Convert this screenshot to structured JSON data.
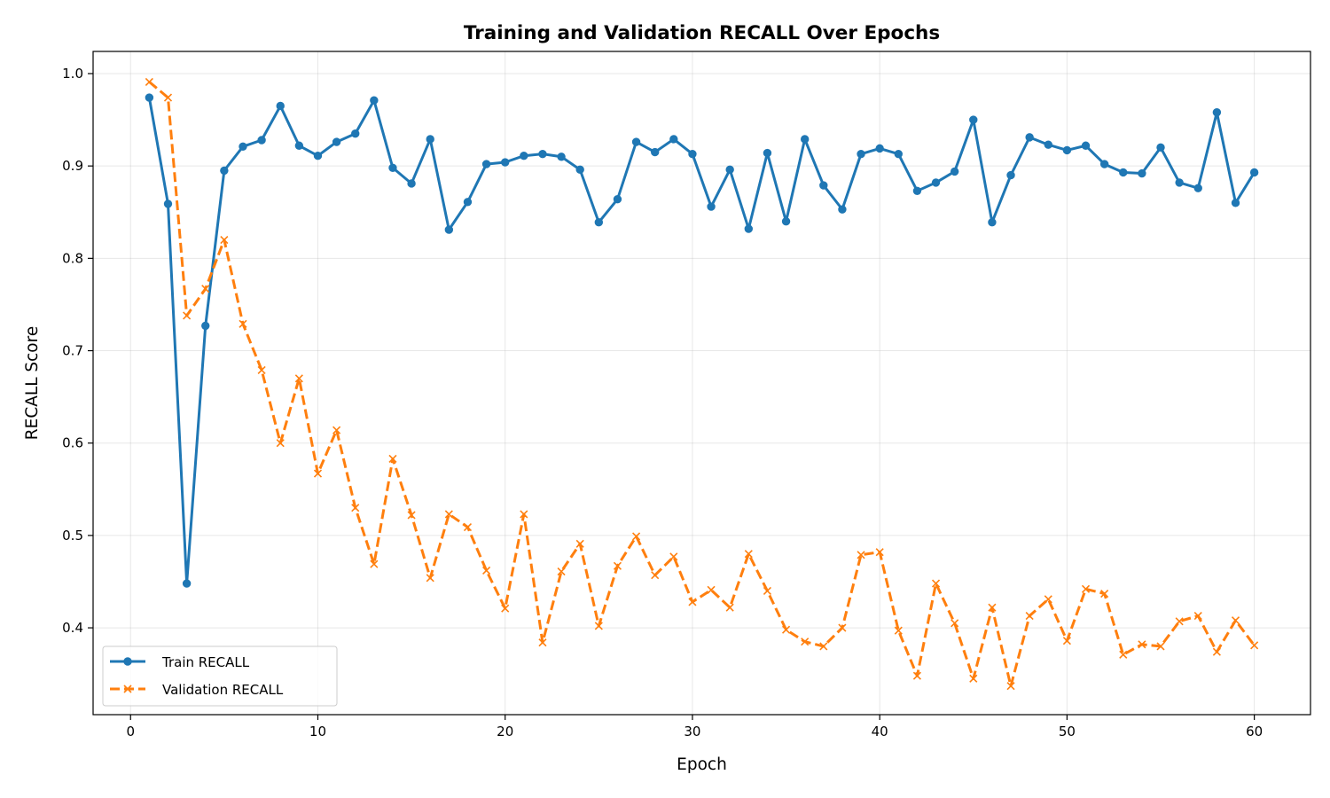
{
  "chart_data": {
    "type": "line",
    "title": "Training and Validation RECALL Over Epochs",
    "xlabel": "Epoch",
    "ylabel": "RECALL Score",
    "xlim": [
      -2,
      63
    ],
    "ylim": [
      0.306,
      1.024
    ],
    "xticks": [
      0,
      10,
      20,
      30,
      40,
      50,
      60
    ],
    "yticks": [
      0.4,
      0.5,
      0.6,
      0.7,
      0.8,
      0.9,
      1.0
    ],
    "grid": true,
    "legend_position": "bottom-left",
    "x": [
      1,
      2,
      3,
      4,
      5,
      6,
      7,
      8,
      9,
      10,
      11,
      12,
      13,
      14,
      15,
      16,
      17,
      18,
      19,
      20,
      21,
      22,
      23,
      24,
      25,
      26,
      27,
      28,
      29,
      30,
      31,
      32,
      33,
      34,
      35,
      36,
      37,
      38,
      39,
      40,
      41,
      42,
      43,
      44,
      45,
      46,
      47,
      48,
      49,
      50,
      51,
      52,
      53,
      54,
      55,
      56,
      57,
      58,
      59,
      60
    ],
    "series": [
      {
        "name": "Train RECALL",
        "color": "#1f77b4",
        "line_style": "solid",
        "marker": "circle",
        "values": [
          0.974,
          0.859,
          0.448,
          0.727,
          0.895,
          0.921,
          0.928,
          0.965,
          0.922,
          0.911,
          0.926,
          0.935,
          0.971,
          0.898,
          0.881,
          0.929,
          0.831,
          0.861,
          0.902,
          0.904,
          0.911,
          0.913,
          0.91,
          0.896,
          0.839,
          0.864,
          0.926,
          0.915,
          0.929,
          0.913,
          0.856,
          0.896,
          0.832,
          0.914,
          0.84,
          0.929,
          0.879,
          0.853,
          0.913,
          0.919,
          0.913,
          0.873,
          0.882,
          0.894,
          0.95,
          0.839,
          0.89,
          0.931,
          0.923,
          0.917,
          0.922,
          0.902,
          0.893,
          0.892,
          0.92,
          0.882,
          0.876,
          0.958,
          0.86,
          0.893
        ]
      },
      {
        "name": "Validation RECALL",
        "color": "#ff7f0e",
        "line_style": "dashed",
        "marker": "x",
        "values": [
          0.991,
          0.974,
          0.738,
          0.767,
          0.82,
          0.729,
          0.679,
          0.6,
          0.67,
          0.567,
          0.614,
          0.53,
          0.469,
          0.583,
          0.522,
          0.454,
          0.523,
          0.509,
          0.462,
          0.421,
          0.523,
          0.384,
          0.461,
          0.491,
          0.402,
          0.467,
          0.499,
          0.457,
          0.477,
          0.428,
          0.441,
          0.422,
          0.48,
          0.44,
          0.398,
          0.385,
          0.38,
          0.4,
          0.479,
          0.482,
          0.397,
          0.348,
          0.448,
          0.405,
          0.345,
          0.422,
          0.337,
          0.413,
          0.431,
          0.386,
          0.442,
          0.437,
          0.371,
          0.382,
          0.38,
          0.407,
          0.413,
          0.374,
          0.408,
          0.381
        ]
      }
    ]
  }
}
